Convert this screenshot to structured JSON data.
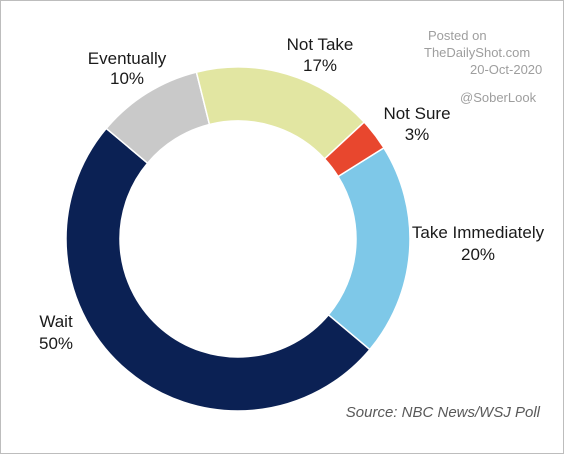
{
  "chart_data": {
    "type": "pie",
    "title": "",
    "style": "donut",
    "categories": [
      "Take Immediately",
      "Wait",
      "Eventually",
      "Not Take",
      "Not Sure"
    ],
    "values": [
      20,
      50,
      10,
      17,
      3
    ],
    "value_labels": [
      "20%",
      "50%",
      "10%",
      "17%",
      "3%"
    ],
    "colors": [
      "#7ec8e8",
      "#0b2154",
      "#c9c9c9",
      "#e2e6a2",
      "#e8472e"
    ],
    "legend": "none",
    "source": "Source:  NBC News/WSJ Poll"
  },
  "watermark": {
    "line1": "Posted on",
    "line2": "TheDailyShot.com",
    "line3": "20-Oct-2020",
    "handle": "@SoberLook"
  }
}
